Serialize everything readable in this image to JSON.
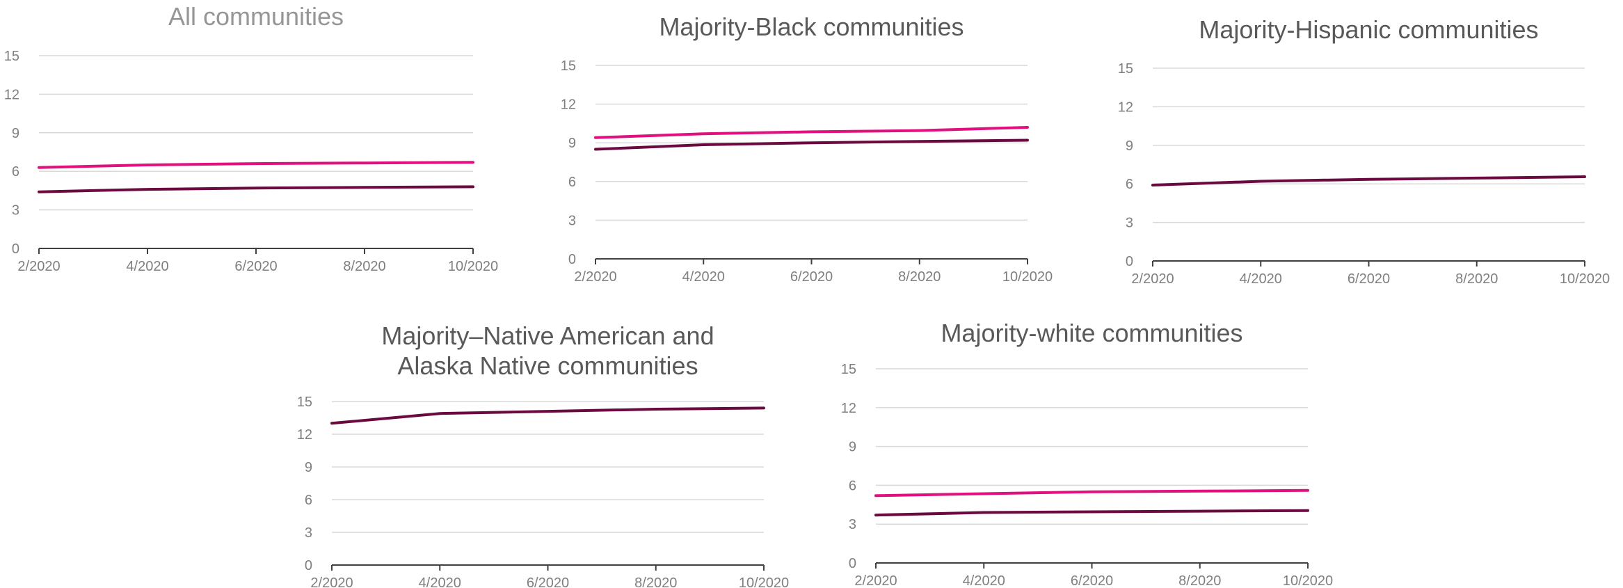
{
  "chart_data": [
    {
      "type": "line",
      "title": "All communities",
      "x": [
        "2/2020",
        "4/2020",
        "6/2020",
        "8/2020",
        "10/2020"
      ],
      "ylim": [
        0,
        15
      ],
      "yticks": [
        0,
        3,
        6,
        9,
        12,
        15
      ],
      "grid": true,
      "series": [
        {
          "color": "#e0117f",
          "values": [
            6.3,
            6.5,
            6.6,
            6.65,
            6.7
          ]
        },
        {
          "color": "#6b0a3f",
          "values": [
            4.4,
            4.6,
            4.7,
            4.75,
            4.8
          ]
        }
      ]
    },
    {
      "type": "line",
      "title": "Majority-Black communities",
      "x": [
        "2/2020",
        "4/2020",
        "6/2020",
        "8/2020",
        "10/2020"
      ],
      "ylim": [
        0,
        15
      ],
      "yticks": [
        0,
        3,
        6,
        9,
        12,
        15
      ],
      "grid": true,
      "series": [
        {
          "color": "#e0117f",
          "values": [
            9.4,
            9.7,
            9.85,
            9.95,
            10.2
          ]
        },
        {
          "color": "#6b0a3f",
          "values": [
            8.5,
            8.85,
            9.0,
            9.1,
            9.2
          ]
        }
      ]
    },
    {
      "type": "line",
      "title": "Majority-Hispanic communities",
      "x": [
        "2/2020",
        "4/2020",
        "6/2020",
        "8/2020",
        "10/2020"
      ],
      "ylim": [
        0,
        15
      ],
      "yticks": [
        0,
        3,
        6,
        9,
        12,
        15
      ],
      "grid": true,
      "series": [
        {
          "color": "#6b0a3f",
          "values": [
            5.9,
            6.2,
            6.35,
            6.45,
            6.55
          ]
        }
      ]
    },
    {
      "type": "line",
      "title": [
        "Majority–Native American and",
        "Alaska Native communities"
      ],
      "x": [
        "2/2020",
        "4/2020",
        "6/2020",
        "8/2020",
        "10/2020"
      ],
      "ylim": [
        0,
        15
      ],
      "yticks": [
        0,
        3,
        6,
        9,
        12,
        15
      ],
      "grid": true,
      "series": [
        {
          "color": "#6b0a3f",
          "values": [
            13.0,
            13.9,
            14.1,
            14.3,
            14.4
          ]
        }
      ]
    },
    {
      "type": "line",
      "title": "Majority-white communities",
      "x": [
        "2/2020",
        "4/2020",
        "6/2020",
        "8/2020",
        "10/2020"
      ],
      "ylim": [
        0,
        15
      ],
      "yticks": [
        0,
        3,
        6,
        9,
        12,
        15
      ],
      "grid": true,
      "series": [
        {
          "color": "#e0117f",
          "values": [
            5.2,
            5.35,
            5.5,
            5.55,
            5.6
          ]
        },
        {
          "color": "#6b0a3f",
          "values": [
            3.7,
            3.9,
            3.95,
            4.0,
            4.05
          ]
        }
      ]
    }
  ],
  "colors": {
    "title": "#595959",
    "title_muted": "#969696",
    "grid": "#d9d9d9",
    "axis": "#404040",
    "tick_label": "#7f7f7f"
  }
}
